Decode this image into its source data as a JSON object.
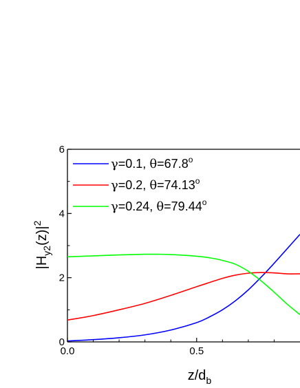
{
  "chart_data": {
    "type": "line",
    "xlim": [
      0,
      0.9
    ],
    "ylim": [
      0,
      6
    ],
    "x_ticks": [
      0.0,
      0.5
    ],
    "x_tick_labels": [
      "0.0",
      "0.5"
    ],
    "y_ticks": [
      0,
      2,
      4,
      6
    ],
    "y_tick_labels": [
      "0",
      "2",
      "4",
      "6"
    ],
    "xlabel": {
      "main": "z/d",
      "sub": "b"
    },
    "ylabel": {
      "pre": "|H",
      "sub": "y2",
      "mid": "(z)|",
      "sup": "2"
    },
    "legend_position": "top-left",
    "series": [
      {
        "label_parts": [
          "γ",
          "=0.1, ",
          "θ",
          "=67.8",
          "o"
        ],
        "color": "#0000ff",
        "x": [
          0,
          0.1,
          0.2,
          0.3,
          0.4,
          0.5,
          0.55,
          0.6,
          0.65,
          0.7,
          0.75,
          0.8,
          0.85,
          0.9
        ],
        "y": [
          0.03,
          0.07,
          0.13,
          0.22,
          0.37,
          0.6,
          0.78,
          1.0,
          1.28,
          1.62,
          2.02,
          2.45,
          2.9,
          3.35
        ]
      },
      {
        "label_parts": [
          "γ",
          "=0.2, ",
          "θ",
          "=74.13",
          "o"
        ],
        "color": "#ff0000",
        "x": [
          0,
          0.1,
          0.2,
          0.3,
          0.4,
          0.5,
          0.55,
          0.6,
          0.65,
          0.7,
          0.75,
          0.8,
          0.85,
          0.9
        ],
        "y": [
          0.68,
          0.82,
          1.0,
          1.2,
          1.45,
          1.72,
          1.85,
          1.98,
          2.08,
          2.14,
          2.16,
          2.15,
          2.12,
          2.12
        ]
      },
      {
        "label_parts": [
          "γ",
          "=0.24, ",
          "θ",
          "=79.44",
          "o"
        ],
        "color": "#00ff00",
        "x": [
          0,
          0.1,
          0.2,
          0.3,
          0.35,
          0.4,
          0.5,
          0.55,
          0.6,
          0.65,
          0.7,
          0.75,
          0.8,
          0.85,
          0.9
        ],
        "y": [
          2.65,
          2.68,
          2.71,
          2.73,
          2.73,
          2.72,
          2.67,
          2.62,
          2.54,
          2.42,
          2.2,
          1.9,
          1.55,
          1.18,
          0.85
        ]
      }
    ]
  }
}
